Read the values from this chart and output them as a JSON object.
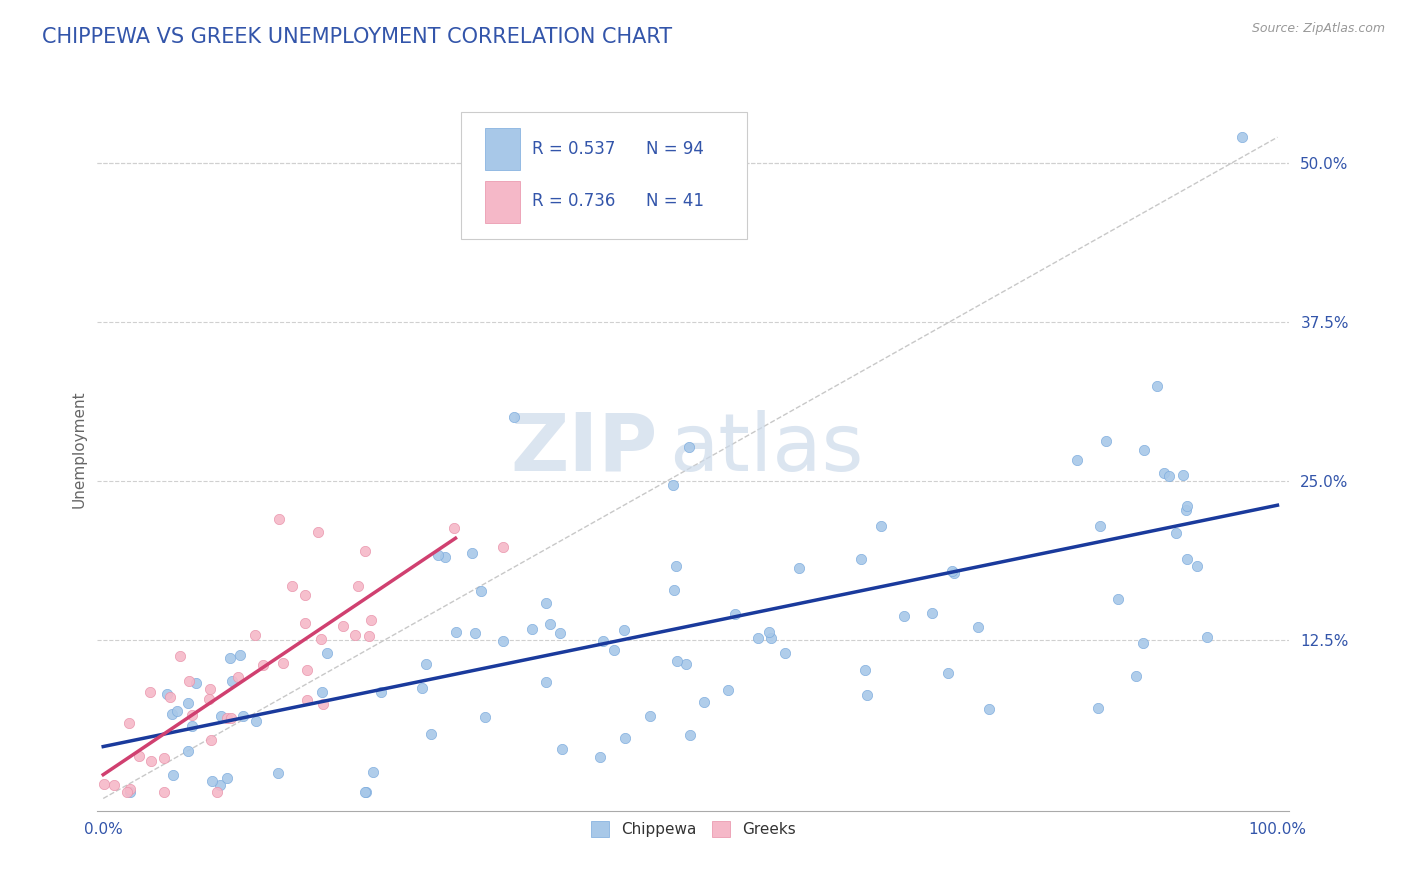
{
  "title": "CHIPPEWA VS GREEK UNEMPLOYMENT CORRELATION CHART",
  "source_text": "Source: ZipAtlas.com",
  "ylabel": "Unemployment",
  "title_color": "#3355aa",
  "title_fontsize": 15,
  "chippewa_color": "#a8c8e8",
  "chippewa_edge_color": "#7aaadd",
  "greeks_color": "#f5b8c8",
  "greeks_edge_color": "#e890a8",
  "chippewa_line_color": "#1a3a9c",
  "greeks_line_color": "#d04070",
  "diagonal_line_color": "#c8c8c8",
  "grid_color": "#d0d0d0",
  "text_color": "#3355aa",
  "source_color": "#999999",
  "watermark_color": "#d8e4f0",
  "R_chippewa": 0.537,
  "N_chippewa": 94,
  "R_greeks": 0.736,
  "N_greeks": 41,
  "ytick_values": [
    0.125,
    0.25,
    0.375,
    0.5
  ],
  "ytick_labels": [
    "12.5%",
    "25.0%",
    "37.5%",
    "50.0%"
  ]
}
